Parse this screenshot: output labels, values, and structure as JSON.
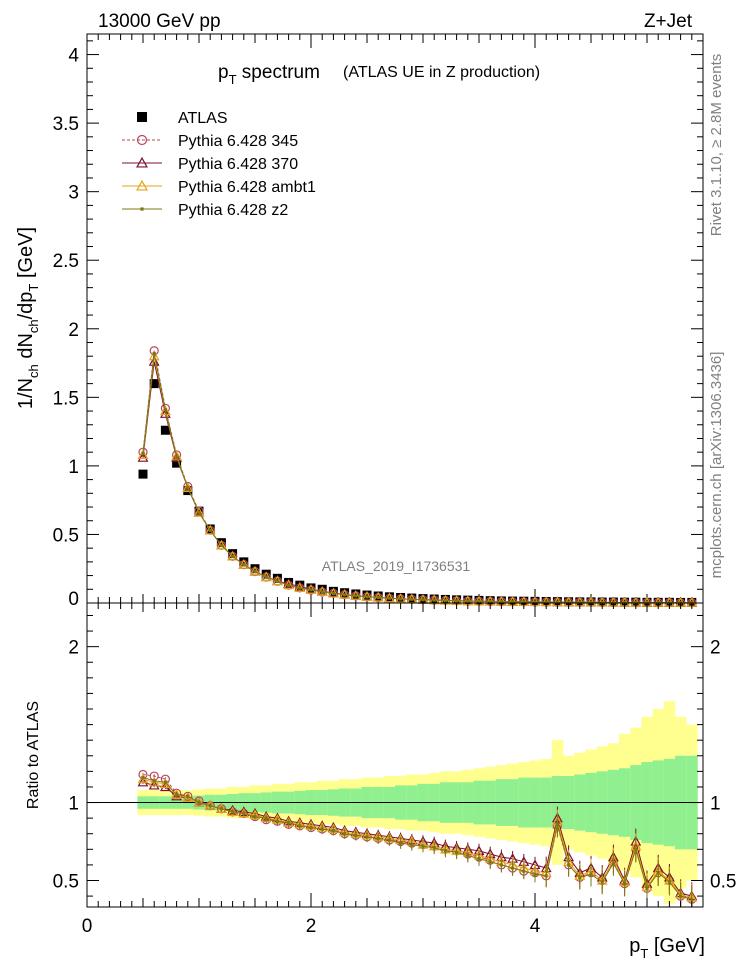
{
  "header": {
    "left": "13000 GeV pp",
    "right": "Z+Jet"
  },
  "plot_title": {
    "main": "p",
    "sub": "T",
    "rest": " spectrum",
    "paren": "(ATLAS UE in Z production)"
  },
  "side_text": {
    "rivet": "Rivet 3.1.10, ≥ 2.8M events",
    "mcplots": "mcplots.cern.ch [arXiv:1306.3436]"
  },
  "watermark": "ATLAS_2019_I1736531",
  "ylabel_top": {
    "a": "1/N",
    "a_sub": "ch",
    "b": " dN",
    "b_sub": "ch",
    "c": "/dp",
    "c_sub": "T",
    "d": " [GeV]"
  },
  "ylabel_bottom": "Ratio to ATLAS",
  "xlabel": {
    "main": "p",
    "sub": "T",
    "rest": " [GeV]"
  },
  "legend": [
    {
      "name": "ATLAS",
      "color": "#000000",
      "marker": "square"
    },
    {
      "name": "Pythia 6.428 345",
      "color": "#b5475e",
      "marker": "circle"
    },
    {
      "name": "Pythia 6.428 370",
      "color": "#7a1030",
      "marker": "triangle"
    },
    {
      "name": "Pythia 6.428 ambt1",
      "color": "#e8a317",
      "marker": "triangle"
    },
    {
      "name": "Pythia 6.428 z2",
      "color": "#7a7a10",
      "marker": "dot"
    }
  ],
  "chart_data": {
    "type": "line",
    "xlim": [
      0,
      5.5
    ],
    "top": {
      "ylim": [
        0,
        4.15
      ],
      "yticks": [
        "0.5",
        "1",
        "1.5",
        "2",
        "2.5",
        "3",
        "3.5",
        "4"
      ],
      "x": [
        0.5,
        0.6,
        0.7,
        0.8,
        0.9,
        1.0,
        1.1,
        1.2,
        1.3,
        1.4,
        1.5,
        1.6,
        1.7,
        1.8,
        1.9,
        2.0,
        2.1,
        2.2,
        2.3,
        2.4,
        2.5,
        2.6,
        2.7,
        2.8,
        2.9,
        3.0,
        3.1,
        3.2,
        3.3,
        3.4,
        3.5,
        3.6,
        3.7,
        3.8,
        3.9,
        4.0,
        4.1,
        4.2,
        4.3,
        4.4,
        4.5,
        4.6,
        4.7,
        4.8,
        4.9,
        5.0,
        5.1,
        5.2,
        5.3,
        5.4
      ],
      "series": [
        {
          "name": "ATLAS",
          "values": [
            0.94,
            1.6,
            1.26,
            1.02,
            0.82,
            0.67,
            0.54,
            0.44,
            0.36,
            0.3,
            0.25,
            0.21,
            0.18,
            0.15,
            0.13,
            0.11,
            0.1,
            0.085,
            0.075,
            0.066,
            0.058,
            0.051,
            0.045,
            0.04,
            0.036,
            0.032,
            0.029,
            0.026,
            0.023,
            0.021,
            0.019,
            0.017,
            0.015,
            0.014,
            0.013,
            0.012,
            0.011,
            0.01,
            0.009,
            0.008,
            0.008,
            0.007,
            0.007,
            0.006,
            0.006,
            0.005,
            0.005,
            0.005,
            0.004,
            0.004
          ]
        },
        {
          "name": "Pythia 6.428 345",
          "values": [
            1.1,
            1.84,
            1.42,
            1.08,
            0.85,
            0.67,
            0.53,
            0.42,
            0.34,
            0.28,
            0.23,
            0.19,
            0.16,
            0.13,
            0.11,
            0.095,
            0.08,
            0.07,
            0.06,
            0.052,
            0.045,
            0.039,
            0.034,
            0.03,
            0.027,
            0.024,
            0.021,
            0.018,
            0.016,
            0.014,
            0.012,
            0.011,
            0.01,
            0.009,
            0.008,
            0.007,
            0.007,
            0.006,
            0.006,
            0.005,
            0.005,
            0.004,
            0.004,
            0.004,
            0.003,
            0.003,
            0.003,
            0.003,
            0.002,
            0.002
          ]
        },
        {
          "name": "Pythia 6.428 370",
          "values": [
            1.06,
            1.76,
            1.38,
            1.06,
            0.84,
            0.66,
            0.53,
            0.42,
            0.34,
            0.28,
            0.23,
            0.19,
            0.16,
            0.14,
            0.12,
            0.1,
            0.085,
            0.073,
            0.063,
            0.054,
            0.047,
            0.041,
            0.036,
            0.031,
            0.028,
            0.025,
            0.022,
            0.019,
            0.017,
            0.015,
            0.013,
            0.012,
            0.011,
            0.01,
            0.009,
            0.008,
            0.007,
            0.007,
            0.006,
            0.006,
            0.005,
            0.005,
            0.004,
            0.004,
            0.004,
            0.003,
            0.003,
            0.003,
            0.003,
            0.002
          ]
        },
        {
          "name": "Pythia 6.428 ambt1",
          "values": [
            1.08,
            1.8,
            1.4,
            1.07,
            0.84,
            0.66,
            0.53,
            0.42,
            0.34,
            0.28,
            0.23,
            0.19,
            0.16,
            0.13,
            0.11,
            0.097,
            0.082,
            0.07,
            0.061,
            0.053,
            0.046,
            0.04,
            0.035,
            0.031,
            0.027,
            0.024,
            0.021,
            0.018,
            0.016,
            0.014,
            0.012,
            0.011,
            0.01,
            0.009,
            0.008,
            0.007,
            0.007,
            0.006,
            0.006,
            0.005,
            0.005,
            0.004,
            0.004,
            0.004,
            0.003,
            0.003,
            0.003,
            0.003,
            0.002,
            0.002
          ]
        },
        {
          "name": "Pythia 6.428 z2",
          "values": [
            1.09,
            1.82,
            1.41,
            1.07,
            0.84,
            0.66,
            0.53,
            0.42,
            0.34,
            0.28,
            0.23,
            0.19,
            0.16,
            0.13,
            0.11,
            0.096,
            0.081,
            0.07,
            0.06,
            0.052,
            0.045,
            0.04,
            0.035,
            0.03,
            0.027,
            0.024,
            0.021,
            0.018,
            0.016,
            0.014,
            0.012,
            0.011,
            0.01,
            0.009,
            0.008,
            0.007,
            0.007,
            0.006,
            0.006,
            0.005,
            0.005,
            0.004,
            0.004,
            0.004,
            0.003,
            0.003,
            0.003,
            0.003,
            0.002,
            0.002
          ]
        }
      ]
    },
    "ratio": {
      "ylim": [
        0.33,
        2.28
      ],
      "yticks": [
        "0.5",
        "1",
        "2"
      ],
      "xticks": [
        "0",
        "2",
        "4"
      ],
      "band_inner": [
        0.04,
        0.04,
        0.04,
        0.04,
        0.04,
        0.045,
        0.05,
        0.05,
        0.055,
        0.06,
        0.06,
        0.065,
        0.07,
        0.07,
        0.075,
        0.08,
        0.08,
        0.085,
        0.09,
        0.09,
        0.1,
        0.1,
        0.1,
        0.11,
        0.11,
        0.12,
        0.12,
        0.13,
        0.13,
        0.13,
        0.14,
        0.14,
        0.15,
        0.15,
        0.16,
        0.16,
        0.16,
        0.17,
        0.17,
        0.18,
        0.19,
        0.2,
        0.21,
        0.22,
        0.24,
        0.26,
        0.27,
        0.28,
        0.3,
        0.3
      ],
      "band_outer": [
        0.08,
        0.08,
        0.08,
        0.08,
        0.08,
        0.085,
        0.09,
        0.09,
        0.1,
        0.1,
        0.11,
        0.11,
        0.12,
        0.12,
        0.13,
        0.13,
        0.14,
        0.14,
        0.15,
        0.15,
        0.16,
        0.16,
        0.17,
        0.17,
        0.18,
        0.18,
        0.19,
        0.2,
        0.2,
        0.21,
        0.22,
        0.23,
        0.24,
        0.25,
        0.26,
        0.27,
        0.28,
        0.4,
        0.3,
        0.32,
        0.34,
        0.36,
        0.38,
        0.44,
        0.48,
        0.55,
        0.6,
        0.65,
        0.55,
        0.5
      ],
      "series": [
        {
          "name": "Pythia 6.428 345",
          "values": [
            1.18,
            1.17,
            1.15,
            1.06,
            1.04,
            1.01,
            0.98,
            0.96,
            0.94,
            0.93,
            0.91,
            0.89,
            0.88,
            0.86,
            0.85,
            0.84,
            0.83,
            0.82,
            0.8,
            0.79,
            0.78,
            0.77,
            0.76,
            0.75,
            0.74,
            0.73,
            0.72,
            0.7,
            0.69,
            0.67,
            0.65,
            0.63,
            0.6,
            0.58,
            0.56,
            0.55,
            0.53,
            0.85,
            0.6,
            0.52,
            0.55,
            0.5,
            0.62,
            0.48,
            0.7,
            0.45,
            0.55,
            0.5,
            0.4,
            0.38
          ]
        },
        {
          "name": "Pythia 6.428 370",
          "values": [
            1.13,
            1.11,
            1.1,
            1.04,
            1.03,
            1.0,
            0.98,
            0.96,
            0.95,
            0.94,
            0.93,
            0.91,
            0.9,
            0.88,
            0.87,
            0.86,
            0.85,
            0.84,
            0.82,
            0.81,
            0.8,
            0.79,
            0.78,
            0.77,
            0.76,
            0.75,
            0.74,
            0.72,
            0.71,
            0.7,
            0.69,
            0.67,
            0.65,
            0.64,
            0.62,
            0.6,
            0.58,
            0.9,
            0.65,
            0.55,
            0.58,
            0.52,
            0.65,
            0.5,
            0.75,
            0.48,
            0.58,
            0.52,
            0.42,
            0.4
          ]
        },
        {
          "name": "Pythia 6.428 ambt1",
          "values": [
            1.15,
            1.13,
            1.12,
            1.05,
            1.03,
            1.0,
            0.98,
            0.96,
            0.94,
            0.93,
            0.92,
            0.9,
            0.89,
            0.87,
            0.86,
            0.85,
            0.84,
            0.83,
            0.81,
            0.8,
            0.79,
            0.78,
            0.77,
            0.76,
            0.75,
            0.73,
            0.72,
            0.7,
            0.69,
            0.68,
            0.66,
            0.64,
            0.62,
            0.6,
            0.58,
            0.56,
            0.55,
            0.88,
            0.62,
            0.53,
            0.56,
            0.5,
            0.63,
            0.49,
            0.72,
            0.46,
            0.56,
            0.5,
            0.41,
            0.39
          ]
        },
        {
          "name": "Pythia 6.428 z2",
          "values": [
            1.16,
            1.14,
            1.13,
            1.05,
            1.04,
            1.0,
            0.98,
            0.96,
            0.94,
            0.93,
            0.91,
            0.9,
            0.88,
            0.87,
            0.85,
            0.84,
            0.83,
            0.82,
            0.8,
            0.79,
            0.78,
            0.77,
            0.76,
            0.74,
            0.73,
            0.72,
            0.71,
            0.69,
            0.68,
            0.66,
            0.64,
            0.62,
            0.6,
            0.58,
            0.56,
            0.54,
            0.53,
            0.86,
            0.6,
            0.52,
            0.54,
            0.49,
            0.61,
            0.48,
            0.7,
            0.45,
            0.55,
            0.49,
            0.4,
            0.38
          ]
        }
      ]
    }
  }
}
